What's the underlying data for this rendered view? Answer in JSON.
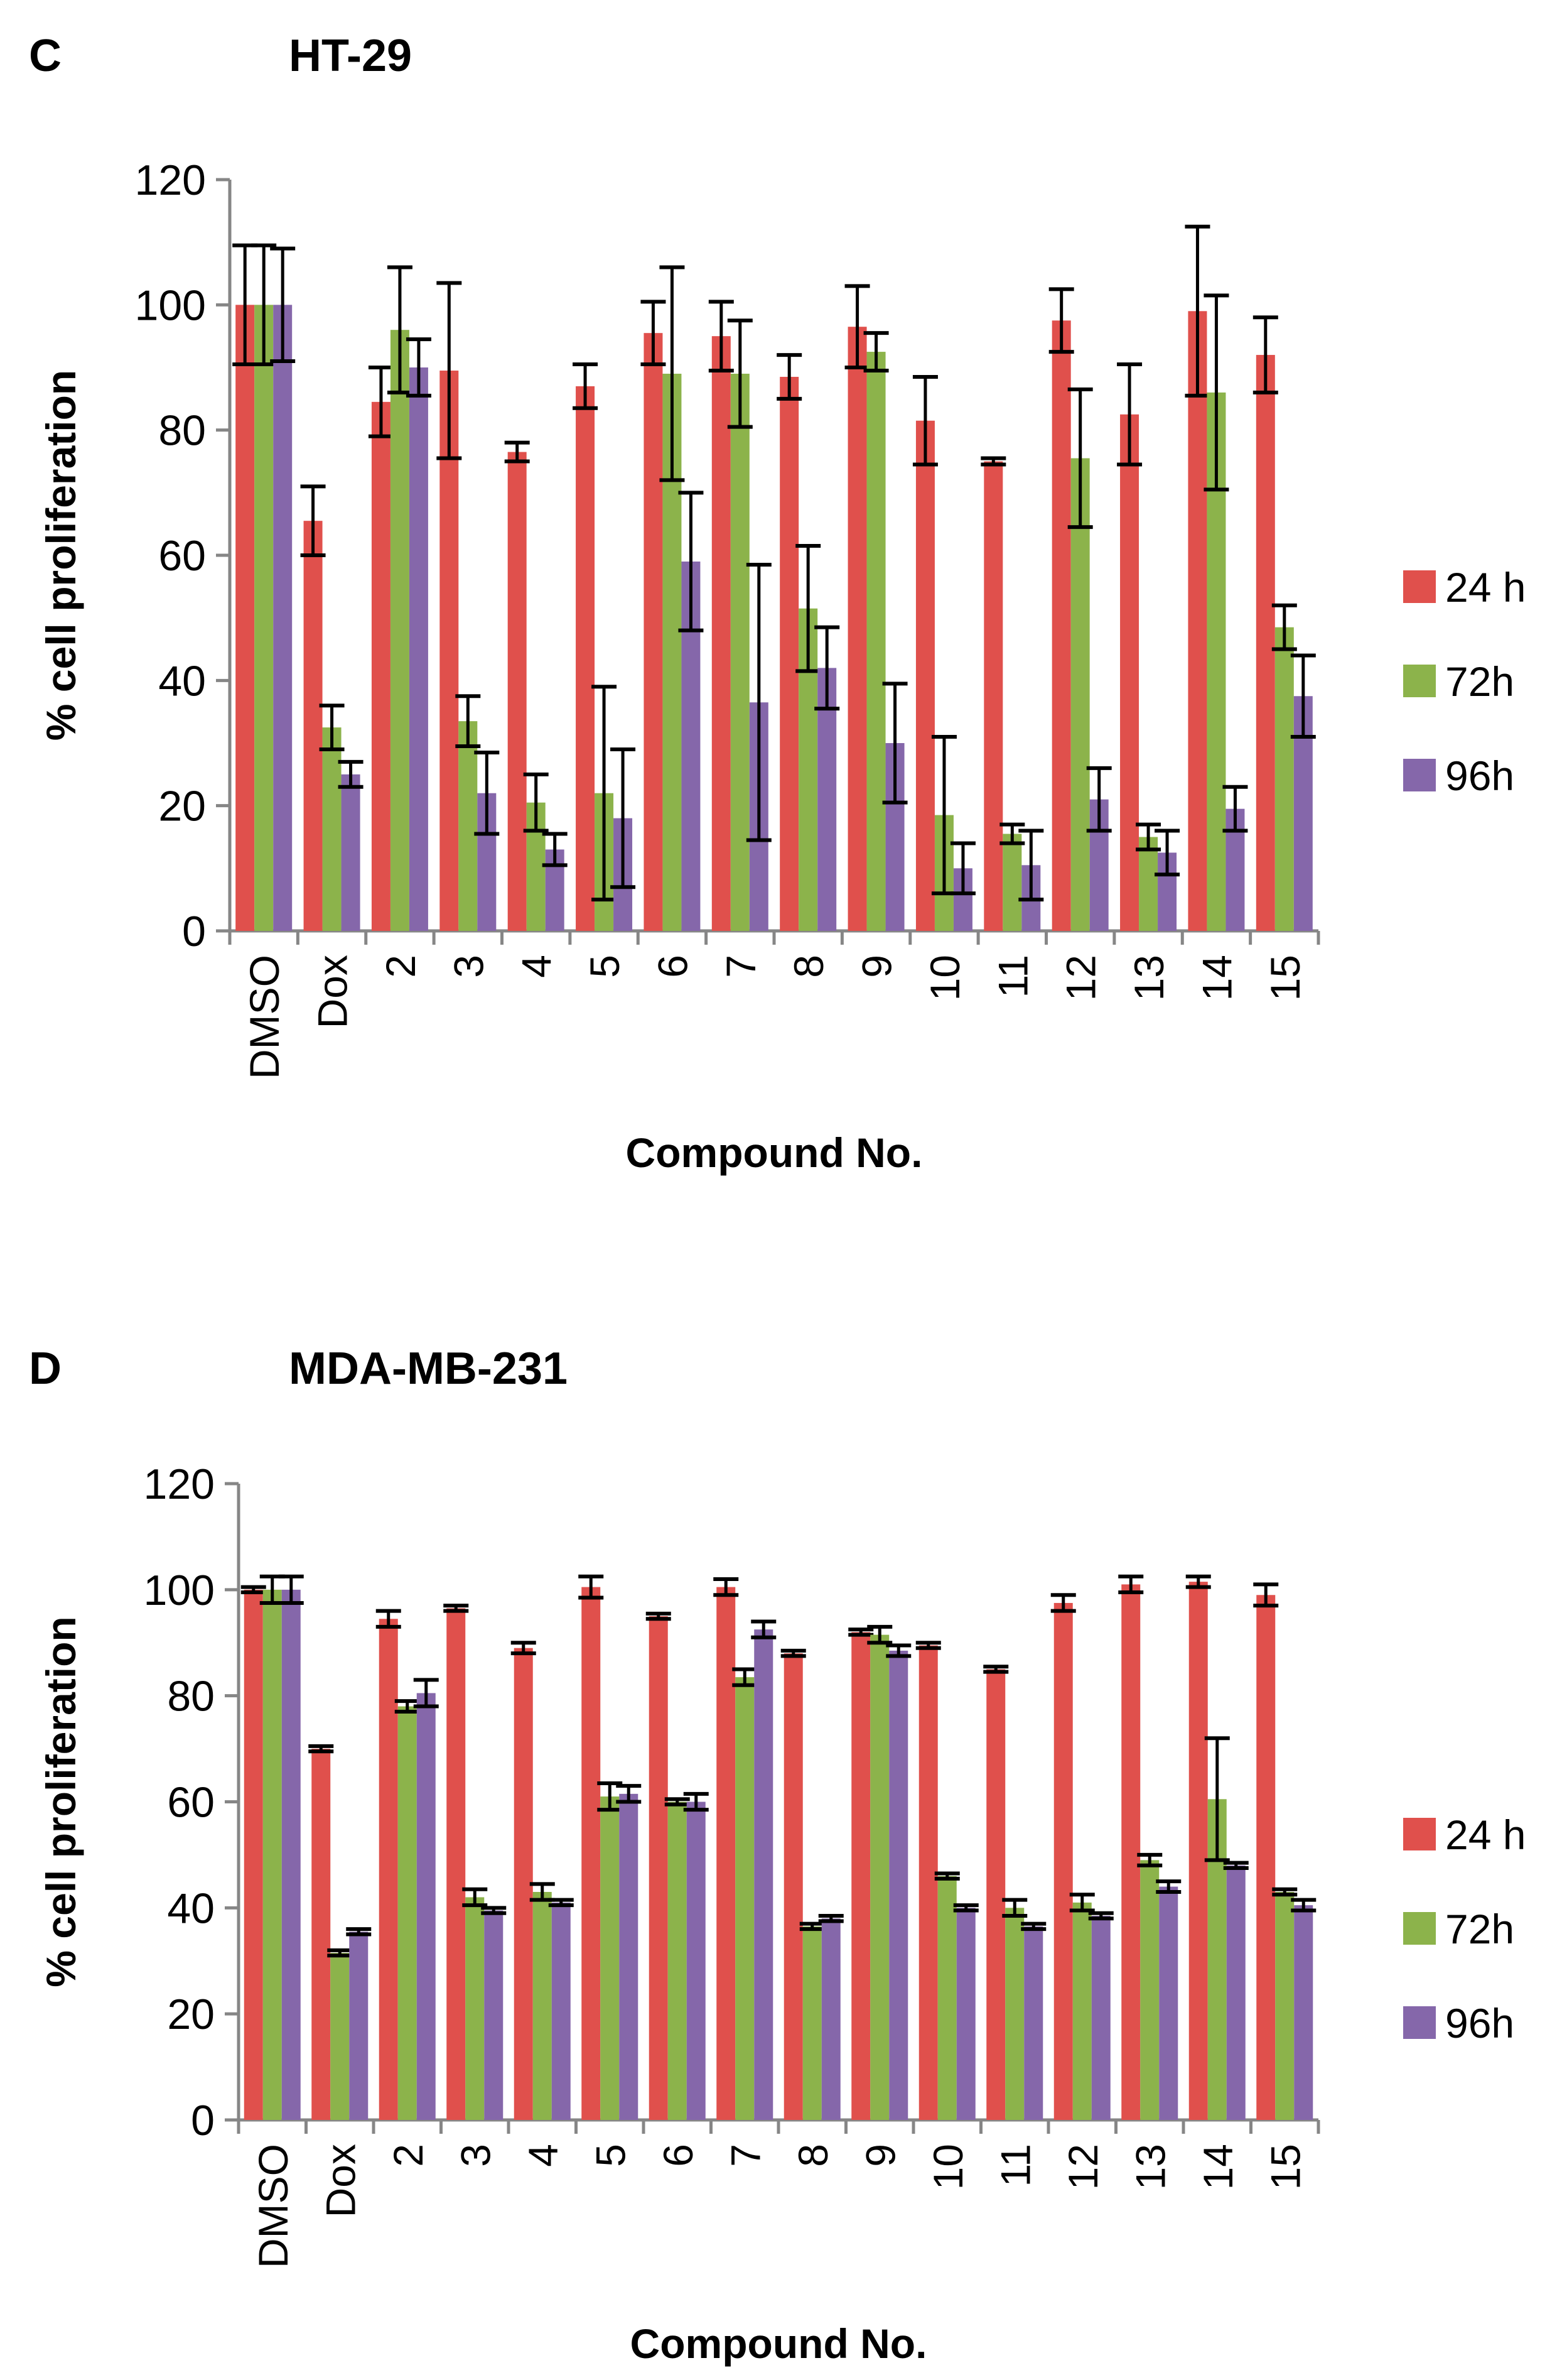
{
  "chart_data": [
    {
      "panel_label": "C",
      "title": "HT-29",
      "type": "bar",
      "xlabel": "Compound No.",
      "ylabel": "% cell proliferation",
      "ylim": [
        0,
        120
      ],
      "yticks": [
        "0",
        "20",
        "40",
        "60",
        "80",
        "100",
        "120"
      ],
      "categories": [
        "DMSO",
        "Dox",
        "2",
        "3",
        "4",
        "5",
        "6",
        "7",
        "8",
        "9",
        "10",
        "11",
        "12",
        "13",
        "14",
        "15"
      ],
      "legend_position": "right",
      "series": [
        {
          "name": "24 h",
          "color": "#e0504c",
          "values": [
            100,
            65.5,
            84.5,
            89.5,
            76.5,
            87,
            95.5,
            95,
            88.5,
            96.5,
            81.5,
            75,
            97.5,
            82.5,
            99,
            92
          ],
          "errors": [
            9.5,
            5.5,
            5.5,
            14,
            1.5,
            3.5,
            5,
            5.5,
            3.5,
            6.5,
            7,
            0.5,
            5,
            8,
            13.5,
            6
          ]
        },
        {
          "name": "72h",
          "color": "#8cb34b",
          "values": [
            100,
            32.5,
            96,
            33.5,
            20.5,
            22,
            89,
            89,
            51.5,
            92.5,
            18.5,
            15.5,
            75.5,
            15,
            86,
            48.5
          ],
          "errors": [
            9.5,
            3.5,
            10,
            4,
            4.5,
            17,
            17,
            8.5,
            10,
            3,
            12.5,
            1.5,
            11,
            2,
            15.5,
            3.5
          ]
        },
        {
          "name": "96h",
          "color": "#8567aa",
          "values": [
            100,
            25,
            90,
            22,
            13,
            18,
            59,
            36.5,
            42,
            30,
            10,
            10.5,
            21,
            12.5,
            19.5,
            37.5
          ],
          "errors": [
            9,
            2,
            4.5,
            6.5,
            2.5,
            11,
            11,
            22,
            6.5,
            9.5,
            4,
            5.5,
            5,
            3.5,
            3.5,
            6.5
          ]
        }
      ]
    },
    {
      "panel_label": "D",
      "title": "MDA-MB-231",
      "type": "bar",
      "xlabel": "Compound No.",
      "ylabel": "% cell proliferation",
      "ylim": [
        0,
        120
      ],
      "yticks": [
        "0",
        "20",
        "40",
        "60",
        "80",
        "100",
        "120"
      ],
      "categories": [
        "DMSO",
        "Dox",
        "2",
        "3",
        "4",
        "5",
        "6",
        "7",
        "8",
        "9",
        "10",
        "11",
        "12",
        "13",
        "14",
        "15"
      ],
      "legend_position": "right",
      "series": [
        {
          "name": "24 h",
          "color": "#e0504c",
          "values": [
            100,
            70,
            94.5,
            96.5,
            89,
            100.5,
            95,
            100.5,
            88,
            92,
            89.5,
            85,
            97.5,
            101,
            101.5,
            99
          ],
          "errors": [
            0.5,
            0.5,
            1.5,
            0.5,
            1,
            2,
            0.5,
            1.5,
            0.5,
            0.5,
            0.5,
            0.5,
            1.5,
            1.5,
            1,
            2
          ]
        },
        {
          "name": "72h",
          "color": "#8cb34b",
          "values": [
            100,
            31.5,
            78,
            42,
            43,
            61,
            60,
            83.5,
            36.5,
            91.5,
            46,
            40,
            41,
            49,
            60.5,
            43
          ],
          "errors": [
            2.5,
            0.5,
            1,
            1.5,
            1.5,
            2.5,
            0.5,
            1.5,
            0.5,
            1.5,
            0.5,
            1.5,
            1.5,
            1,
            11.5,
            0.5
          ]
        },
        {
          "name": "96h",
          "color": "#8567aa",
          "values": [
            100,
            35.5,
            80.5,
            39.5,
            41,
            61.5,
            60,
            92.5,
            38,
            88.5,
            40,
            36.5,
            38.5,
            44,
            48,
            40.5
          ],
          "errors": [
            2.5,
            0.5,
            2.5,
            0.5,
            0.5,
            1.5,
            1.5,
            1.5,
            0.5,
            1,
            0.5,
            0.5,
            0.5,
            1,
            0.5,
            1
          ]
        }
      ]
    }
  ]
}
